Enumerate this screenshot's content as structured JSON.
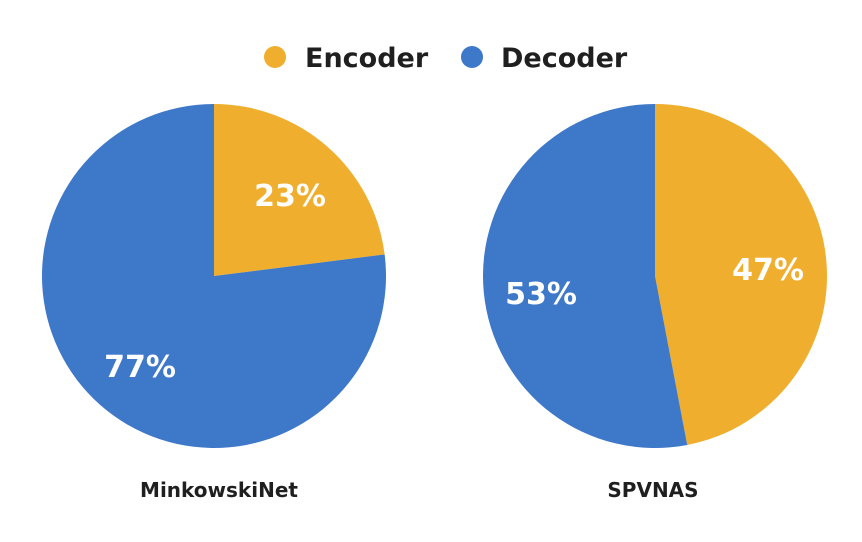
{
  "legend": {
    "entries": [
      {
        "label": "Encoder",
        "color": "#f0ae2e"
      },
      {
        "label": "Decoder",
        "color": "#3e78c8"
      }
    ],
    "placement": "top-center"
  },
  "chart_data": [
    {
      "type": "pie",
      "title": "MinkowskiNet",
      "categories": [
        "Encoder",
        "Decoder"
      ],
      "values": [
        23,
        77
      ],
      "labels": [
        "23%",
        "77%"
      ],
      "colors": [
        "#f0ae2e",
        "#3e78c8"
      ]
    },
    {
      "type": "pie",
      "title": "SPVNAS",
      "categories": [
        "Encoder",
        "Decoder"
      ],
      "values": [
        47,
        53
      ],
      "labels": [
        "47%",
        "53%"
      ],
      "colors": [
        "#f0ae2e",
        "#3e78c8"
      ]
    }
  ]
}
